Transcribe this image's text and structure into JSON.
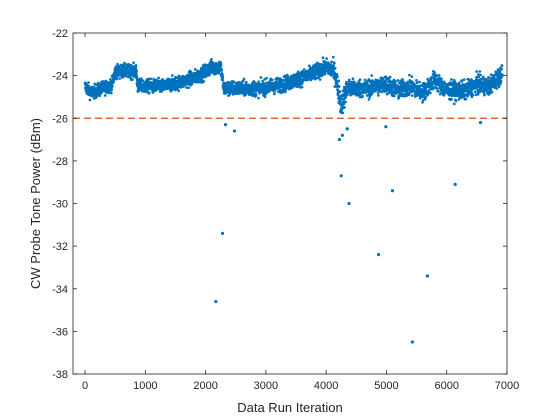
{
  "chart_data": {
    "type": "scatter",
    "xlabel": "Data Run Iteration",
    "ylabel": "CW Probe Tone Power (dBm)",
    "xlim": [
      -200,
      7000
    ],
    "ylim": [
      -38,
      -22
    ],
    "xticks": [
      0,
      1000,
      2000,
      3000,
      4000,
      5000,
      6000,
      7000
    ],
    "yticks": [
      -38,
      -36,
      -34,
      -32,
      -30,
      -28,
      -26,
      -24,
      -22
    ],
    "x_tick_labels": [
      "0",
      "1000",
      "2000",
      "3000",
      "4000",
      "5000",
      "6000",
      "7000"
    ],
    "y_tick_labels": [
      "-38",
      "-36",
      "-34",
      "-32",
      "-30",
      "-28",
      "-26",
      "-24",
      "-22"
    ],
    "grid": false,
    "marker_color": "#0072bd",
    "threshold_line": {
      "y": -26,
      "color": "#d95319",
      "style": "dashed"
    },
    "band": {
      "x_range": [
        0,
        6920
      ],
      "center": [
        [
          0,
          -24.5
        ],
        [
          100,
          -24.8
        ],
        [
          200,
          -24.7
        ],
        [
          450,
          -24.4
        ],
        [
          500,
          -23.8
        ],
        [
          850,
          -23.8
        ],
        [
          870,
          -24.5
        ],
        [
          1300,
          -24.5
        ],
        [
          1600,
          -24.3
        ],
        [
          1900,
          -24.0
        ],
        [
          2100,
          -23.6
        ],
        [
          2250,
          -23.6
        ],
        [
          2300,
          -24.6
        ],
        [
          2500,
          -24.6
        ],
        [
          2900,
          -24.6
        ],
        [
          3300,
          -24.4
        ],
        [
          3700,
          -24.0
        ],
        [
          4000,
          -23.6
        ],
        [
          4100,
          -23.7
        ],
        [
          4150,
          -23.9
        ],
        [
          4250,
          -25.4
        ],
        [
          4350,
          -24.6
        ],
        [
          4700,
          -24.6
        ],
        [
          5000,
          -24.4
        ],
        [
          5200,
          -24.7
        ],
        [
          5400,
          -24.5
        ],
        [
          5600,
          -24.8
        ],
        [
          5800,
          -24.2
        ],
        [
          6000,
          -24.7
        ],
        [
          6300,
          -24.7
        ],
        [
          6500,
          -24.4
        ],
        [
          6700,
          -24.5
        ],
        [
          6920,
          -23.9
        ]
      ],
      "halfwidth": [
        [
          0,
          0.55
        ],
        [
          2000,
          0.6
        ],
        [
          4000,
          0.65
        ],
        [
          4250,
          1.0
        ],
        [
          4400,
          0.75
        ],
        [
          6920,
          0.75
        ]
      ]
    },
    "outliers": [
      {
        "x": 2170,
        "y": -34.6
      },
      {
        "x": 2280,
        "y": -31.4
      },
      {
        "x": 2480,
        "y": -26.6
      },
      {
        "x": 2330,
        "y": -26.3
      },
      {
        "x": 4220,
        "y": -27.0
      },
      {
        "x": 4250,
        "y": -28.7
      },
      {
        "x": 4270,
        "y": -26.8
      },
      {
        "x": 4380,
        "y": -30.0
      },
      {
        "x": 4350,
        "y": -26.5
      },
      {
        "x": 4870,
        "y": -32.4
      },
      {
        "x": 4990,
        "y": -26.4
      },
      {
        "x": 5100,
        "y": -29.4
      },
      {
        "x": 5430,
        "y": -36.5
      },
      {
        "x": 5680,
        "y": -33.4
      },
      {
        "x": 6140,
        "y": -29.1
      },
      {
        "x": 6560,
        "y": -26.2
      }
    ]
  }
}
